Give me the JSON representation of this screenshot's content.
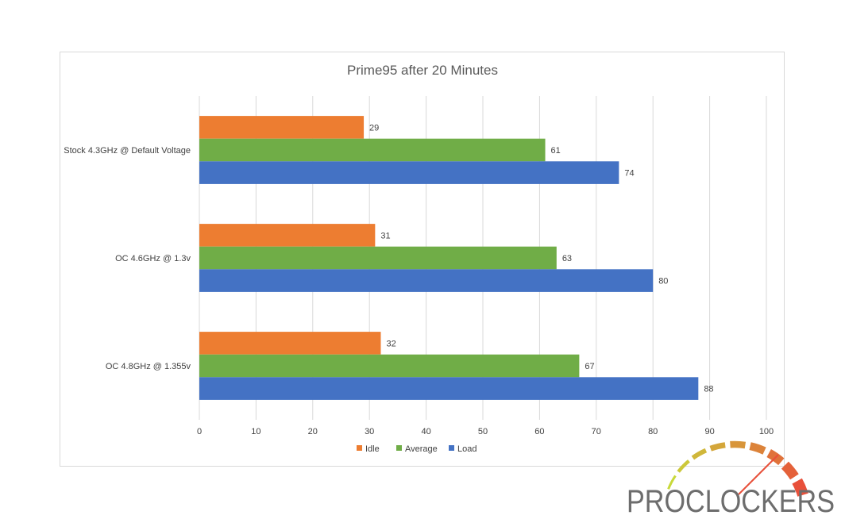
{
  "chart_data": {
    "type": "bar",
    "orientation": "horizontal",
    "title": "Prime95 after 20 Minutes",
    "categories": [
      "Stock 4.3GHz @ Default Voltage",
      "OC 4.6GHz @ 1.3v",
      "OC 4.8GHz @ 1.355v"
    ],
    "series": [
      {
        "name": "Idle",
        "color": "#ED7D31",
        "values": [
          29,
          31,
          32
        ]
      },
      {
        "name": "Average",
        "color": "#70AD47",
        "values": [
          61,
          63,
          67
        ]
      },
      {
        "name": "Load",
        "color": "#4472C4",
        "values": [
          74,
          80,
          88
        ]
      }
    ],
    "xlim": [
      0,
      100
    ],
    "xticks": [
      "0",
      "10",
      "20",
      "30",
      "40",
      "50",
      "60",
      "70",
      "80",
      "90",
      "100"
    ],
    "grid": true,
    "legend_position": "bottom",
    "data_labels": true
  },
  "logo": {
    "text": "PROCLOCKERS",
    "colors": {
      "text": "#6d6d6d",
      "gauge_start": "#c8d93a",
      "gauge_end": "#e8503a",
      "needle": "#e8503a"
    }
  }
}
